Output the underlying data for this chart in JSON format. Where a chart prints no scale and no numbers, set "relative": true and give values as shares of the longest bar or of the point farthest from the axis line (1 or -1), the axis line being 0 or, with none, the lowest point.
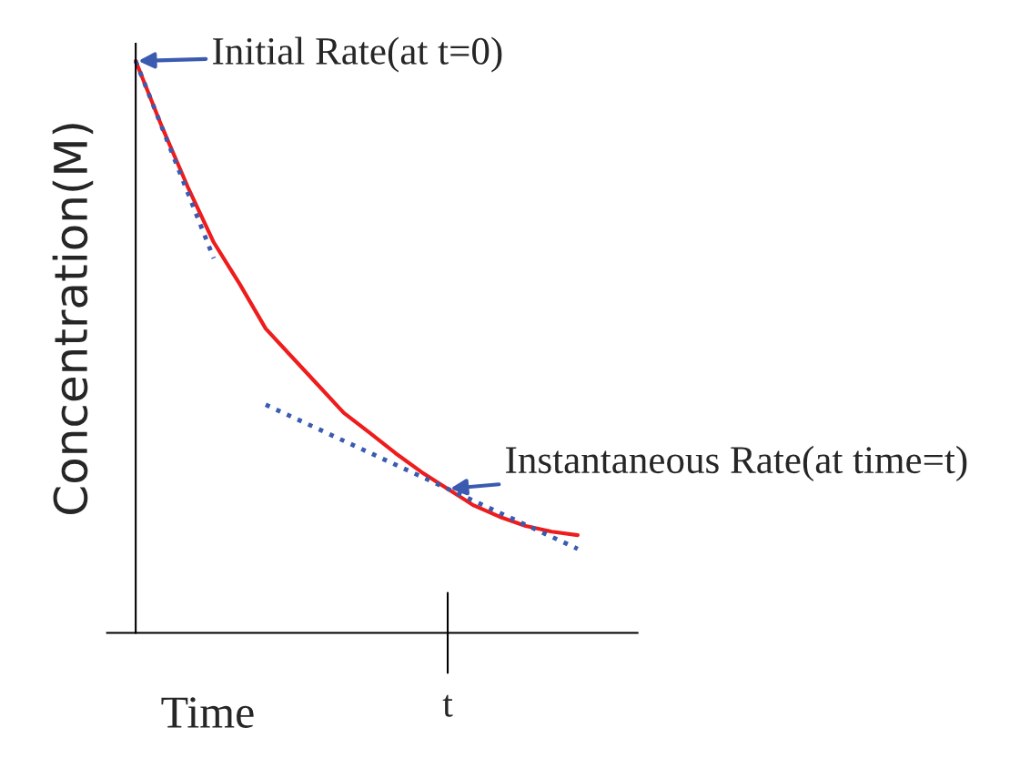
{
  "chart_data": {
    "type": "line",
    "relative": true,
    "xlabel": "Time",
    "ylabel": "Concentration(M)",
    "categories": [
      null,
      null,
      null,
      null,
      null,
      null,
      null,
      null,
      null,
      null,
      null,
      null,
      null,
      null,
      null,
      null,
      null,
      null
    ],
    "series": [
      {
        "color": "#ee1c1c",
        "line_style": "solid",
        "values": [
          1.0,
          0.886,
          0.78,
          0.683,
          0.61,
          0.532,
          0.483,
          0.434,
          0.385,
          0.35,
          0.314,
          0.281,
          0.252,
          0.223,
          0.203,
          0.187,
          0.177,
          0.171
        ]
      },
      {
        "color": "#3a5bb0",
        "line_style": "dotted",
        "values": [
          1.0,
          0.885,
          0.77,
          0.655,
          null,
          null,
          null,
          null,
          null,
          null,
          null,
          null,
          null,
          null,
          null,
          null,
          null,
          null
        ]
      },
      {
        "color": "#3a5bb0",
        "line_style": "dotted",
        "values": [
          null,
          null,
          null,
          null,
          null,
          0.399,
          0.378,
          0.357,
          0.336,
          0.315,
          0.294,
          0.273,
          0.252,
          0.231,
          0.21,
          0.189,
          0.168,
          0.147
        ]
      }
    ],
    "annotations": [
      "Initial Rate(at t=0)",
      "Instantaneous Rate(at time=t)",
      "t"
    ]
  }
}
